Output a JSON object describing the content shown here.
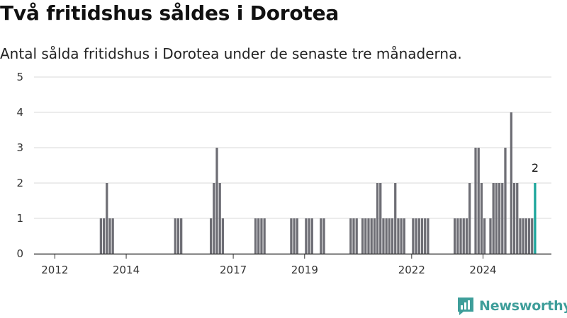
{
  "title": "Två fritidshus såldes i Dorotea",
  "subtitle": "Antal sålda fritidshus i Dorotea under de senaste tre månaderna.",
  "brand": {
    "name": "Newsworthy",
    "logo_icon": "bar-chart-speech-icon",
    "color": "#3e9e9a"
  },
  "colors": {
    "bar": "#6e6e75",
    "highlight": "#1aa59b",
    "grid": "#d9d9d9",
    "axis": "#333333"
  },
  "chart_data": {
    "type": "bar",
    "title": "Två fritidshus såldes i Dorotea",
    "subtitle": "Antal sålda fritidshus i Dorotea under de senaste tre månaderna.",
    "xlabel": "",
    "ylabel": "",
    "ylim": [
      0,
      5
    ],
    "yticks": [
      "0",
      "1",
      "2",
      "3",
      "4",
      "5"
    ],
    "xlim": [
      "2011-06",
      "2025-12"
    ],
    "xticks": [
      {
        "label": "2012",
        "date": "2012-01"
      },
      {
        "label": "2014",
        "date": "2014-01"
      },
      {
        "label": "2017",
        "date": "2017-01"
      },
      {
        "label": "2019",
        "date": "2019-01"
      },
      {
        "label": "2022",
        "date": "2022-01"
      },
      {
        "label": "2024",
        "date": "2024-01"
      }
    ],
    "grid": true,
    "legend": "none",
    "x": [
      "2013-04",
      "2013-05",
      "2013-06",
      "2013-07",
      "2013-08",
      "2013-09",
      "2015-05",
      "2015-06",
      "2015-07",
      "2016-05",
      "2016-06",
      "2016-07",
      "2016-08",
      "2016-09",
      "2017-08",
      "2017-09",
      "2017-10",
      "2017-11",
      "2018-08",
      "2018-09",
      "2018-10",
      "2019-01",
      "2019-02",
      "2019-03",
      "2019-06",
      "2019-07",
      "2020-04",
      "2020-05",
      "2020-06",
      "2020-08",
      "2020-09",
      "2020-10",
      "2020-11",
      "2020-12",
      "2021-01",
      "2021-02",
      "2021-03",
      "2021-04",
      "2021-05",
      "2021-06",
      "2021-07",
      "2021-08",
      "2021-09",
      "2021-10",
      "2022-01",
      "2022-02",
      "2022-03",
      "2022-04",
      "2022-05",
      "2022-06",
      "2023-03",
      "2023-04",
      "2023-05",
      "2023-06",
      "2023-07",
      "2023-08",
      "2023-10",
      "2023-11",
      "2023-12",
      "2024-01",
      "2024-03",
      "2024-04",
      "2024-05",
      "2024-06",
      "2024-07",
      "2024-08",
      "2024-10",
      "2024-11",
      "2024-12",
      "2025-01",
      "2025-02",
      "2025-03",
      "2025-04",
      "2025-05",
      "2025-06"
    ],
    "values": [
      1,
      1,
      2,
      1,
      1,
      0,
      1,
      1,
      1,
      1,
      2,
      3,
      2,
      1,
      1,
      1,
      1,
      1,
      1,
      1,
      1,
      1,
      1,
      1,
      1,
      1,
      1,
      1,
      1,
      1,
      1,
      1,
      1,
      1,
      2,
      2,
      1,
      1,
      1,
      1,
      2,
      1,
      1,
      1,
      1,
      1,
      1,
      1,
      1,
      1,
      1,
      1,
      1,
      1,
      1,
      2,
      3,
      3,
      2,
      1,
      1,
      2,
      2,
      2,
      2,
      3,
      4,
      2,
      2,
      1,
      1,
      1,
      1,
      1,
      2
    ],
    "highlight": {
      "index": 74,
      "label": "2"
    }
  }
}
